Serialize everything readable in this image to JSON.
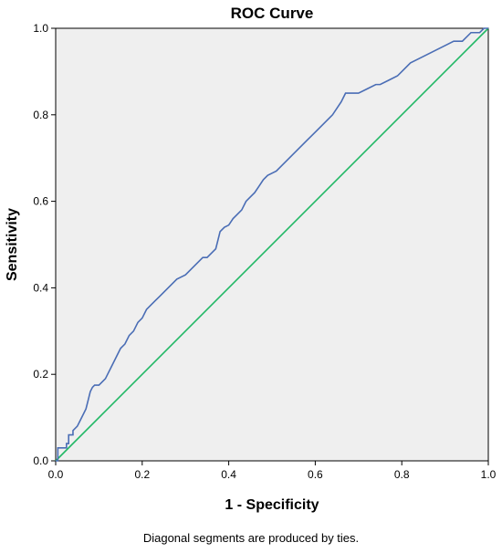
{
  "chart_data": {
    "type": "line",
    "title": "ROC Curve",
    "xlabel": "1 - Specificity",
    "ylabel": "Sensitivity",
    "footnote": "Diagonal segments are produced by ties.",
    "xlim": [
      0,
      1
    ],
    "ylim": [
      0,
      1
    ],
    "x_ticks": [
      "0.0",
      "0.2",
      "0.4",
      "0.6",
      "0.8",
      "1.0"
    ],
    "y_ticks": [
      "0.0",
      "0.2",
      "0.4",
      "0.6",
      "0.8",
      "1.0"
    ],
    "grid": false,
    "legend": "none",
    "colors": {
      "plot_background": "#efefef",
      "roc_curve": "#4a6db5",
      "reference_line": "#21b865"
    },
    "series": [
      {
        "x": [
          0,
          0.005,
          0.005,
          0.01,
          0.01,
          0.025,
          0.025,
          0.03,
          0.03,
          0.04,
          0.04,
          0.05,
          0.055,
          0.06,
          0.065,
          0.07,
          0.075,
          0.08,
          0.085,
          0.09,
          0.095,
          0.1,
          0.115,
          0.12,
          0.13,
          0.14,
          0.15,
          0.16,
          0.17,
          0.18,
          0.19,
          0.2,
          0.21,
          0.22,
          0.23,
          0.24,
          0.25,
          0.26,
          0.27,
          0.28,
          0.29,
          0.3,
          0.31,
          0.32,
          0.33,
          0.34,
          0.35,
          0.36,
          0.37,
          0.375,
          0.38,
          0.39,
          0.4,
          0.41,
          0.42,
          0.43,
          0.44,
          0.45,
          0.46,
          0.47,
          0.48,
          0.49,
          0.5,
          0.51,
          0.52,
          0.54,
          0.56,
          0.58,
          0.6,
          0.62,
          0.64,
          0.66,
          0.67,
          0.68,
          0.69,
          0.7,
          0.72,
          0.74,
          0.75,
          0.77,
          0.79,
          0.8,
          0.82,
          0.84,
          0.86,
          0.88,
          0.9,
          0.92,
          0.94,
          0.96,
          0.98,
          0.99,
          1.0
        ],
        "y": [
          0,
          0,
          0.03,
          0.03,
          0.03,
          0.03,
          0.04,
          0.04,
          0.06,
          0.06,
          0.07,
          0.08,
          0.09,
          0.1,
          0.11,
          0.12,
          0.14,
          0.16,
          0.17,
          0.175,
          0.175,
          0.175,
          0.19,
          0.2,
          0.22,
          0.24,
          0.26,
          0.27,
          0.29,
          0.3,
          0.32,
          0.33,
          0.35,
          0.36,
          0.37,
          0.38,
          0.39,
          0.4,
          0.41,
          0.42,
          0.425,
          0.43,
          0.44,
          0.45,
          0.46,
          0.47,
          0.47,
          0.48,
          0.49,
          0.51,
          0.53,
          0.54,
          0.545,
          0.56,
          0.57,
          0.58,
          0.6,
          0.61,
          0.62,
          0.635,
          0.65,
          0.66,
          0.665,
          0.67,
          0.68,
          0.7,
          0.72,
          0.74,
          0.76,
          0.78,
          0.8,
          0.83,
          0.85,
          0.85,
          0.85,
          0.85,
          0.86,
          0.87,
          0.87,
          0.88,
          0.89,
          0.9,
          0.92,
          0.93,
          0.94,
          0.95,
          0.96,
          0.97,
          0.97,
          0.99,
          0.99,
          1.0,
          1.0
        ]
      },
      {
        "x": [
          0,
          1
        ],
        "y": [
          0,
          1
        ]
      }
    ]
  }
}
